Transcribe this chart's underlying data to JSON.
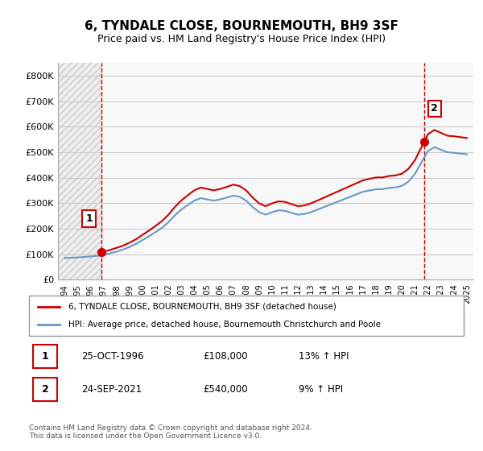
{
  "title": "6, TYNDALE CLOSE, BOURNEMOUTH, BH9 3SF",
  "subtitle": "Price paid vs. HM Land Registry's House Price Index (HPI)",
  "xlabel": "",
  "ylabel": "",
  "ylim": [
    0,
    850000
  ],
  "yticks": [
    0,
    100000,
    200000,
    300000,
    400000,
    500000,
    600000,
    700000,
    800000
  ],
  "ytick_labels": [
    "£0",
    "£100K",
    "£200K",
    "£300K",
    "£400K",
    "£500K",
    "£600K",
    "£700K",
    "£800K"
  ],
  "sale1_date": "1996-10-25",
  "sale1_price": 108000,
  "sale1_label": "1",
  "sale1_hpi_pct": "13%",
  "sale2_date": "2021-09-24",
  "sale2_price": 540000,
  "sale2_label": "2",
  "sale2_hpi_pct": "9%",
  "line_color_price": "#cc0000",
  "line_color_hpi": "#6699cc",
  "annotation_box_color": "#cc0000",
  "hatched_region_color": "#dddddd",
  "background_color": "#ffffff",
  "grid_color": "#cccccc",
  "legend_label_price": "6, TYNDALE CLOSE, BOURNEMOUTH, BH9 3SF (detached house)",
  "legend_label_hpi": "HPI: Average price, detached house, Bournemouth Christchurch and Poole",
  "footer_text": "Contains HM Land Registry data © Crown copyright and database right 2024.\nThis data is licensed under the Open Government Licence v3.0.",
  "table_row1": [
    "1",
    "25-OCT-1996",
    "£108,000",
    "13% ↑ HPI"
  ],
  "table_row2": [
    "2",
    "24-SEP-2021",
    "£540,000",
    "9% ↑ HPI"
  ],
  "hpi_data_x": [
    1994.0,
    1994.5,
    1995.0,
    1995.5,
    1996.0,
    1996.5,
    1997.0,
    1997.5,
    1998.0,
    1998.5,
    1999.0,
    1999.5,
    2000.0,
    2000.5,
    2001.0,
    2001.5,
    2002.0,
    2002.5,
    2003.0,
    2003.5,
    2004.0,
    2004.5,
    2005.0,
    2005.5,
    2006.0,
    2006.5,
    2007.0,
    2007.5,
    2008.0,
    2008.5,
    2009.0,
    2009.5,
    2010.0,
    2010.5,
    2011.0,
    2011.5,
    2012.0,
    2012.5,
    2013.0,
    2013.5,
    2014.0,
    2014.5,
    2015.0,
    2015.5,
    2016.0,
    2016.5,
    2017.0,
    2017.5,
    2018.0,
    2018.5,
    2019.0,
    2019.5,
    2020.0,
    2020.5,
    2021.0,
    2021.5,
    2022.0,
    2022.5,
    2023.0,
    2023.5,
    2024.0,
    2024.5,
    2025.0
  ],
  "hpi_data_y": [
    85000,
    86000,
    87000,
    89000,
    91000,
    93000,
    97000,
    103000,
    110000,
    118000,
    128000,
    140000,
    155000,
    170000,
    186000,
    203000,
    225000,
    252000,
    275000,
    293000,
    310000,
    320000,
    315000,
    310000,
    315000,
    322000,
    330000,
    325000,
    310000,
    285000,
    265000,
    255000,
    265000,
    272000,
    270000,
    262000,
    255000,
    258000,
    265000,
    275000,
    285000,
    295000,
    305000,
    315000,
    325000,
    335000,
    345000,
    350000,
    355000,
    355000,
    360000,
    362000,
    368000,
    385000,
    415000,
    460000,
    505000,
    520000,
    510000,
    500000,
    498000,
    495000,
    492000
  ],
  "price_data_x": [
    1996.82,
    2021.73
  ],
  "price_data_y": [
    108000,
    540000
  ],
  "xlim": [
    1993.5,
    2025.5
  ],
  "xticks": [
    1994,
    1995,
    1996,
    1997,
    1998,
    1999,
    2000,
    2001,
    2002,
    2003,
    2004,
    2005,
    2006,
    2007,
    2008,
    2009,
    2010,
    2011,
    2012,
    2013,
    2014,
    2015,
    2016,
    2017,
    2018,
    2019,
    2020,
    2021,
    2022,
    2023,
    2024,
    2025
  ]
}
